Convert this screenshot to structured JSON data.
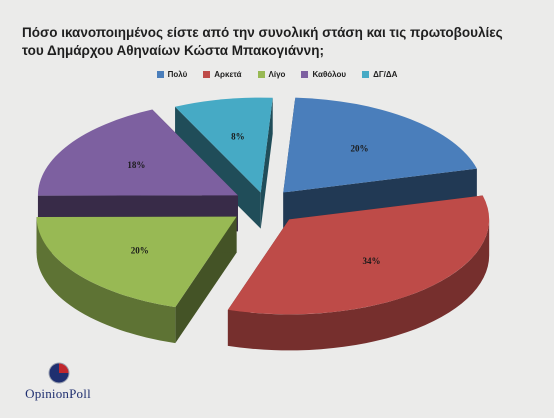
{
  "chart_data": {
    "type": "pie",
    "title": "Πόσο ικανοποιημένος είστε από την συνολική στάση και τις πρωτοβουλίες του Δημάρχου Αθηναίων Κώστα Μπακογιάννη;",
    "categories": [
      "Πολύ",
      "Αρκετά",
      "Λίγο",
      "Καθόλου",
      "ΔΓ/ΔΑ"
    ],
    "values": [
      20,
      34,
      20,
      18,
      8
    ],
    "value_labels": [
      "20%",
      "34%",
      "20%",
      "18%",
      "8%"
    ],
    "colors": [
      "#4a7ebb",
      "#be4b48",
      "#98b954",
      "#7d60a0",
      "#46aac5"
    ],
    "legend_position": "top",
    "exploded": true,
    "three_d": true
  },
  "logo": {
    "text": "OpinionPoll"
  }
}
